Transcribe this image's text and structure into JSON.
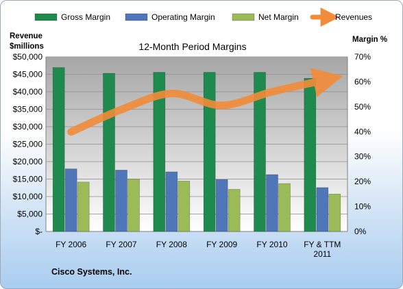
{
  "chart_data": {
    "type": "bar",
    "title": "12-Month Period Margins",
    "categories": [
      [
        "FY 2006"
      ],
      [
        "FY 2007"
      ],
      [
        "FY 2008"
      ],
      [
        "FY 2009"
      ],
      [
        "FY 2010"
      ],
      [
        "FY & TTM",
        "2011"
      ]
    ],
    "left_axis": {
      "label_line1": "Revenue",
      "label_line2": "$millions",
      "ylim": [
        0,
        50000
      ],
      "ticks": [
        "$-",
        "$5,000",
        "$10,000",
        "$15,000",
        "$20,000",
        "$25,000",
        "$30,000",
        "$35,000",
        "$40,000",
        "$45,000",
        "$50,000"
      ]
    },
    "right_axis": {
      "label": "Margin %",
      "ylim": [
        0,
        70
      ],
      "ticks": [
        "0%",
        "10%",
        "20%",
        "30%",
        "40%",
        "50%",
        "60%",
        "70%"
      ]
    },
    "series": [
      {
        "name": "Gross Margin",
        "type": "bar",
        "axis": "right",
        "color": "#1e8a4e",
        "values": [
          65.7,
          63.4,
          63.8,
          63.8,
          63.8,
          61.4
        ]
      },
      {
        "name": "Operating Margin",
        "type": "bar",
        "axis": "right",
        "color": "#4f76b8",
        "values": [
          25.1,
          24.6,
          23.9,
          20.8,
          22.8,
          17.6
        ]
      },
      {
        "name": "Net Margin",
        "type": "bar",
        "axis": "right",
        "color": "#9bbb59",
        "values": [
          19.8,
          21.0,
          20.2,
          16.9,
          19.2,
          15.0
        ]
      },
      {
        "name": "Revenues",
        "type": "line",
        "axis": "left",
        "color": "#f28c3a",
        "values": [
          28500,
          34900,
          39500,
          36100,
          40000,
          43200
        ]
      }
    ],
    "grid": true,
    "legend": "top"
  },
  "footer": {
    "company": "Cisco Systems, Inc."
  }
}
